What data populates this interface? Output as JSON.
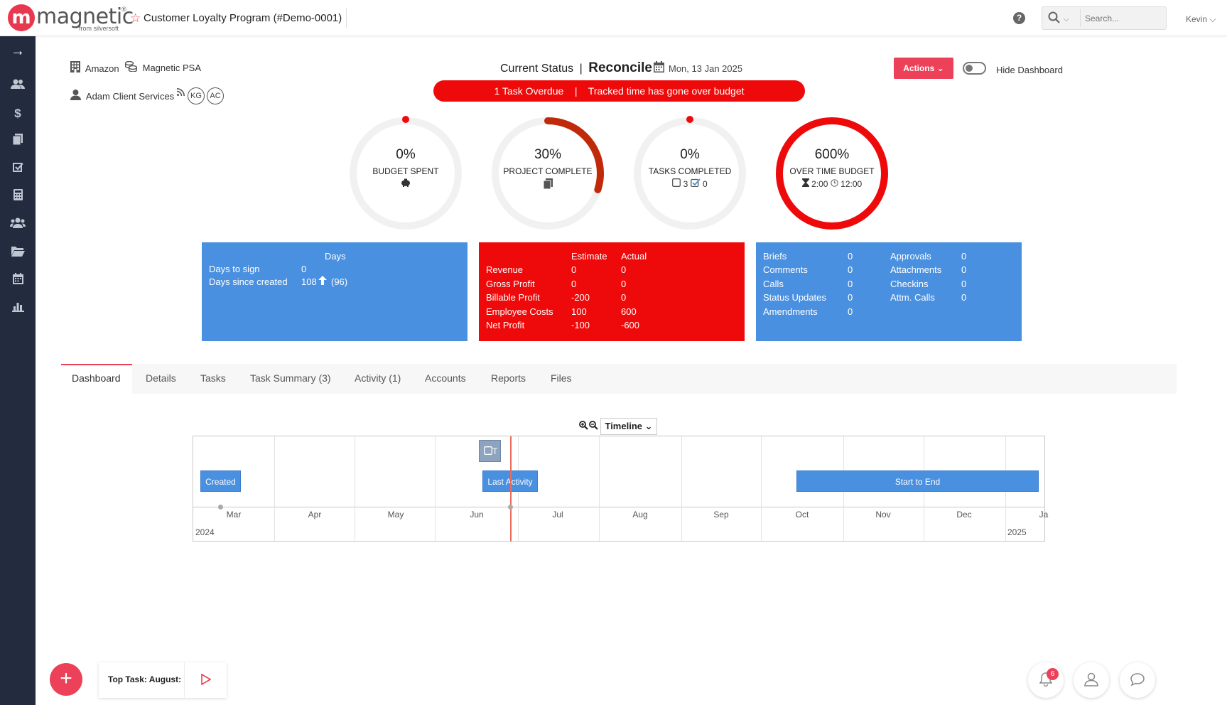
{
  "app": {
    "logo_letter": "m",
    "logo_name": "magnetic",
    "logo_reg": "®",
    "logo_sub": "from silversoft"
  },
  "header": {
    "project_title": "Customer Loyalty Program (#Demo-0001)",
    "help": "?",
    "search_placeholder": "Search...",
    "user": "Kevin ⌵"
  },
  "client": {
    "company": "Amazon",
    "product": "Magnetic PSA",
    "contact": "Adam Client Services",
    "avatars": [
      "KG",
      "AC"
    ]
  },
  "status": {
    "prefix": "Current Status",
    "separator": "|",
    "value": "Reconcile",
    "date": "Mon, 13 Jan 2025"
  },
  "alert": {
    "text": "1 Task Overdue    |    Tracked time has gone over budget"
  },
  "actions": {
    "label": "Actions ⌄",
    "toggle_label": "Hide Dashboard",
    "toggle_on": false
  },
  "rings": [
    {
      "value": "0%",
      "label": "BUDGET SPENT",
      "sub": "",
      "progress": 0,
      "color": "#ee0a0a"
    },
    {
      "value": "30%",
      "label": "PROJECT COMPLETE",
      "sub": "",
      "progress": 0.3,
      "color": "#c0290a"
    },
    {
      "value": "0%",
      "label": "TASKS COMPLETED",
      "sub_a": "3",
      "sub_b": "0",
      "progress": 0,
      "color": "#ee0a0a"
    },
    {
      "value": "600%",
      "label": "OVER TIME BUDGET",
      "sub_a": "2:00",
      "sub_b": "12:00",
      "progress": 1,
      "color": "#ee0a0a"
    }
  ],
  "days_box": {
    "title": "Days",
    "rows": [
      {
        "label": "Days to sign",
        "value": "0",
        "extra": ""
      },
      {
        "label": "Days since created",
        "value": "108",
        "extra": "(96)"
      }
    ]
  },
  "financial_box": {
    "col1": "Estimate",
    "col2": "Actual",
    "rows": [
      {
        "label": "Revenue",
        "estimate": "0",
        "actual": "0"
      },
      {
        "label": "Gross Profit",
        "estimate": "0",
        "actual": "0"
      },
      {
        "label": "Billable Profit",
        "estimate": "-200",
        "actual": "0"
      },
      {
        "label": "Employee Costs",
        "estimate": "100",
        "actual": "600"
      },
      {
        "label": "Net Profit",
        "estimate": "-100",
        "actual": "-600"
      }
    ]
  },
  "activity_box": {
    "left": [
      {
        "label": "Briefs",
        "value": "0"
      },
      {
        "label": "Comments",
        "value": "0"
      },
      {
        "label": "Calls",
        "value": "0"
      },
      {
        "label": "Status Updates",
        "value": "0"
      },
      {
        "label": "Amendments",
        "value": "0"
      }
    ],
    "right": [
      {
        "label": "Approvals",
        "value": "0"
      },
      {
        "label": "Attachments",
        "value": "0"
      },
      {
        "label": "Checkins",
        "value": "0"
      },
      {
        "label": "Attm. Calls",
        "value": "0"
      }
    ]
  },
  "tabs": [
    "Dashboard",
    "Details",
    "Tasks",
    "Task Summary (3)",
    "Activity (1)",
    "Accounts",
    "Reports",
    "Files"
  ],
  "active_tab": "Dashboard",
  "timeline": {
    "view_select": "Timeline ⌄",
    "months": [
      "Mar",
      "Apr",
      "May",
      "Jun",
      "Jul",
      "Aug",
      "Sep",
      "Oct",
      "Nov",
      "Dec",
      "Ja"
    ],
    "years": [
      "2024",
      "2025"
    ],
    "items": [
      {
        "label": "Created"
      },
      {
        "label": "Last Activity"
      },
      {
        "label": "Start to End"
      },
      {
        "label": "T"
      }
    ]
  },
  "bottom": {
    "fab": "+",
    "top_task_label": "Top Task: August:",
    "notification_count": "6"
  },
  "colors": {
    "accent": "#ec4158",
    "blue_box": "#4a90e0",
    "red_box": "#ee0a0a",
    "sidebar": "#232b3e"
  }
}
